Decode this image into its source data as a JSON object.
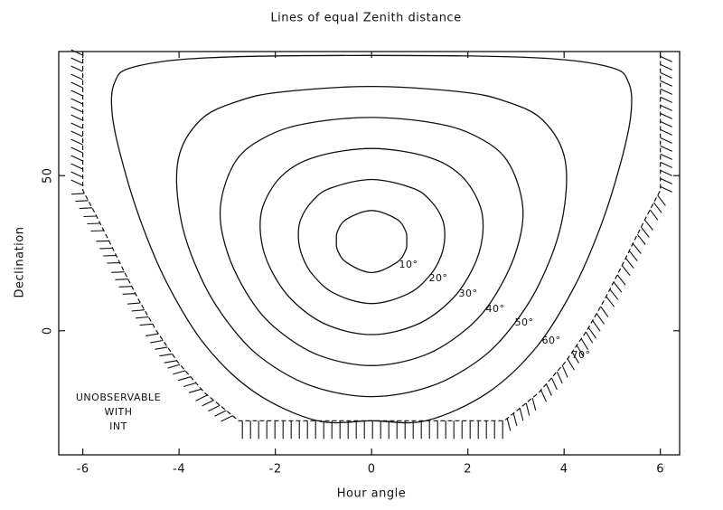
{
  "chart_data": {
    "type": "contour",
    "title": "Lines of equal Zenith distance",
    "x_label": "Hour angle",
    "y_label": "Declination",
    "xlim": [
      -6.5,
      6.4
    ],
    "ylim": [
      -40,
      90
    ],
    "xticks": [
      -6,
      -4,
      -2,
      0,
      2,
      4,
      6
    ],
    "yticks": [
      0,
      50
    ],
    "color": "#111111",
    "series": [
      {
        "name": "10°",
        "x": [
          0,
          0.52,
          0.71,
          0.73,
          0.71,
          0.52,
          0,
          -0.52,
          -0.71,
          -0.73,
          -0.71,
          -0.52
        ],
        "y": [
          18.76,
          22,
          26,
          28.76,
          32,
          36,
          38.76,
          36,
          32,
          28.76,
          26,
          22
        ]
      },
      {
        "name": "20°",
        "x": [
          0,
          0.77,
          1.22,
          1.44,
          1.52,
          1.47,
          1.22,
          0.85,
          0,
          -0.85,
          -1.22,
          -1.47,
          -1.52,
          -1.44,
          -1.22,
          -0.77
        ],
        "y": [
          8.76,
          12,
          18,
          24,
          30,
          36,
          42,
          46,
          48.76,
          46,
          42,
          36,
          30,
          24,
          18,
          12
        ]
      },
      {
        "name": "30°",
        "x": [
          0,
          0.94,
          1.66,
          2.1,
          2.3,
          2.26,
          1.86,
          1.17,
          0,
          -1.17,
          -1.86,
          -2.26,
          -2.3,
          -2.1,
          -1.66,
          -0.94
        ],
        "y": [
          -1.24,
          2,
          10,
          20,
          30,
          40,
          50,
          56,
          58.76,
          56,
          50,
          40,
          30,
          20,
          10,
          2
        ]
      },
      {
        "name": "40°",
        "x": [
          0,
          1.08,
          1.93,
          2.51,
          2.99,
          3.14,
          2.81,
          2.13,
          1.28,
          0,
          -1.28,
          -2.13,
          -2.81,
          -3.14,
          -2.99,
          -2.51,
          -1.93,
          -1.08
        ],
        "y": [
          -11.24,
          -8,
          0,
          10,
          25,
          40,
          55,
          63,
          67,
          68.76,
          67,
          63,
          55,
          40,
          25,
          10,
          0,
          -8
        ]
      },
      {
        "name": "50°",
        "x": [
          0,
          1.21,
          2.18,
          2.85,
          3.48,
          3.95,
          4.02,
          3.55,
          2.77,
          1.86,
          0,
          -1.86,
          -2.77,
          -3.55,
          -4.02,
          -3.95,
          -3.48,
          -2.85,
          -2.18,
          -1.21
        ],
        "y": [
          -21.24,
          -18,
          -10,
          0,
          15,
          35,
          55,
          68,
          74,
          77,
          78.76,
          77,
          74,
          68,
          55,
          35,
          15,
          0,
          -10,
          -18
        ]
      },
      {
        "name": "60°",
        "x": [
          0,
          1.13,
          2.41,
          3.44,
          4.24,
          4.79,
          5.19,
          5.39,
          5.34,
          4.95,
          3.39,
          0,
          -3.39,
          -4.95,
          -5.34,
          -5.39,
          -5.19,
          -4.79,
          -4.24,
          -3.44,
          -2.41,
          -1.13
        ],
        "y": [
          -29,
          -29,
          -20,
          -5,
          15,
          35,
          55,
          70,
          80,
          85,
          88,
          88.76,
          88,
          85,
          80,
          70,
          55,
          35,
          15,
          -5,
          -20,
          -29
        ]
      }
    ],
    "limit": {
      "name": "70°",
      "x": [
        -6,
        -6,
        -5.75,
        -5.49,
        -5.17,
        -4.84,
        -4.47,
        -4.03,
        -3.47,
        -2.76,
        2.76,
        3.47,
        4.03,
        4.47,
        4.84,
        5.17,
        5.49,
        5.75,
        6,
        6
      ],
      "y": [
        90,
        45.3,
        38,
        30,
        20,
        10,
        0,
        -10,
        -20,
        -29,
        -29,
        -20,
        -10,
        0,
        10,
        20,
        30,
        38,
        45.3,
        90
      ]
    },
    "annotation": [
      "UNOBSERVABLE",
      "WITH",
      "INT"
    ]
  }
}
